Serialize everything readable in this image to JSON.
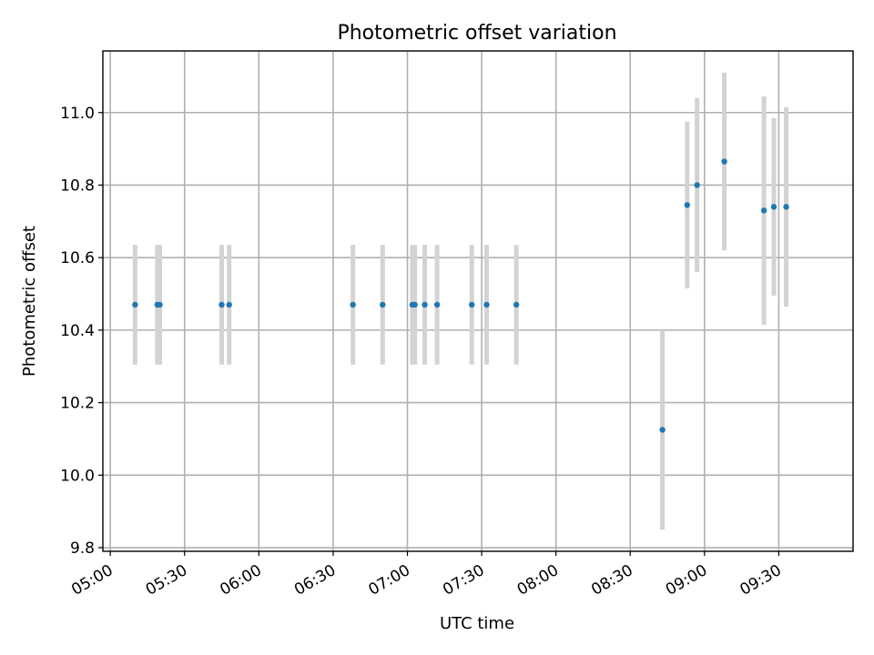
{
  "chart_data": {
    "type": "scatter",
    "title": "Photometric offset variation",
    "xlabel": "UTC time",
    "ylabel": "Photometric offset",
    "x_ticks": [
      "05:00",
      "05:30",
      "06:00",
      "06:30",
      "07:00",
      "07:30",
      "08:00",
      "08:30",
      "09:00",
      "09:30"
    ],
    "y_ticks": [
      "9.8",
      "10.0",
      "10.2",
      "10.4",
      "10.6",
      "10.8",
      "11.0"
    ],
    "xlim": [
      "04:57",
      "10:00"
    ],
    "ylim": [
      9.79,
      11.17
    ],
    "grid": true,
    "colors": {
      "points": "#1f77b4",
      "errorbars": "#d3d3d3",
      "grid": "#b0b0b0"
    },
    "series": [
      {
        "points": [
          {
            "x": "05:10",
            "y": 10.47,
            "err": 0.165
          },
          {
            "x": "05:19",
            "y": 10.47,
            "err": 0.165
          },
          {
            "x": "05:20",
            "y": 10.47,
            "err": 0.165
          },
          {
            "x": "05:45",
            "y": 10.47,
            "err": 0.165
          },
          {
            "x": "05:48",
            "y": 10.47,
            "err": 0.165
          },
          {
            "x": "06:38",
            "y": 10.47,
            "err": 0.165
          },
          {
            "x": "06:50",
            "y": 10.47,
            "err": 0.165
          },
          {
            "x": "07:02",
            "y": 10.47,
            "err": 0.165
          },
          {
            "x": "07:03",
            "y": 10.47,
            "err": 0.165
          },
          {
            "x": "07:07",
            "y": 10.47,
            "err": 0.165
          },
          {
            "x": "07:12",
            "y": 10.47,
            "err": 0.165
          },
          {
            "x": "07:26",
            "y": 10.47,
            "err": 0.165
          },
          {
            "x": "07:32",
            "y": 10.47,
            "err": 0.165
          },
          {
            "x": "07:44",
            "y": 10.47,
            "err": 0.165
          },
          {
            "x": "08:43",
            "y": 10.125,
            "err": 0.275
          },
          {
            "x": "08:53",
            "y": 10.745,
            "err": 0.23
          },
          {
            "x": "08:57",
            "y": 10.8,
            "err": 0.24
          },
          {
            "x": "09:08",
            "y": 10.865,
            "err": 0.245
          },
          {
            "x": "09:24",
            "y": 10.73,
            "err": 0.315
          },
          {
            "x": "09:28",
            "y": 10.74,
            "err": 0.245
          },
          {
            "x": "09:33",
            "y": 10.74,
            "err": 0.275
          }
        ]
      }
    ]
  }
}
